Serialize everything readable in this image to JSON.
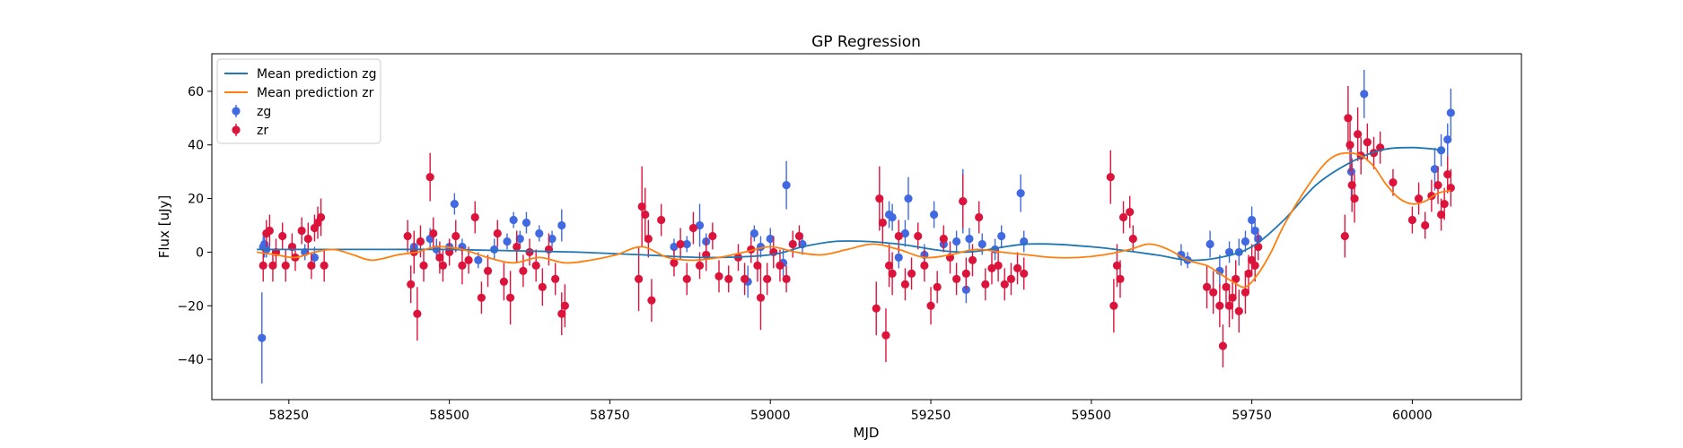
{
  "chart_data": {
    "type": "scatter",
    "title": "GP Regression",
    "xlabel": "MJD",
    "ylabel": "Flux [uJy]",
    "xlim": [
      58130,
      60170
    ],
    "ylim": [
      -55,
      74
    ],
    "xticks": [
      58250,
      58500,
      58750,
      59000,
      59250,
      59500,
      59750,
      60000
    ],
    "yticks": [
      -40,
      -20,
      0,
      20,
      40,
      60
    ],
    "grid": false,
    "legend": {
      "placement": "top-left",
      "entries": [
        {
          "label": "Mean prediction zg",
          "kind": "line",
          "color": "#1f77b4"
        },
        {
          "label": "Mean prediction zr",
          "kind": "line",
          "color": "#ff7f0e"
        },
        {
          "label": "zg",
          "kind": "errorbar",
          "color": "#4169e1"
        },
        {
          "label": "zr",
          "kind": "errorbar",
          "color": "#dc143c"
        }
      ]
    },
    "series": [
      {
        "name": "Mean prediction zg",
        "kind": "line",
        "color": "#1f77b4",
        "x": [
          58200,
          58300,
          58400,
          58500,
          58600,
          58700,
          58800,
          58900,
          59000,
          59050,
          59100,
          59150,
          59200,
          59300,
          59400,
          59500,
          59600,
          59650,
          59700,
          59750,
          59800,
          59850,
          59900,
          59950,
          60000,
          60050
        ],
        "y": [
          1,
          1,
          1,
          1,
          0.5,
          0,
          -1,
          -2,
          -1,
          2,
          4,
          4,
          3,
          0,
          3,
          2,
          -1,
          -3,
          -2,
          2,
          12,
          25,
          33,
          38,
          39,
          38
        ]
      },
      {
        "name": "Mean prediction zr",
        "kind": "line",
        "color": "#ff7f0e",
        "x": [
          58200,
          58230,
          58260,
          58290,
          58320,
          58350,
          58380,
          58420,
          58450,
          58480,
          58520,
          58560,
          58600,
          58640,
          58680,
          58720,
          58760,
          58800,
          58840,
          58880,
          58920,
          58960,
          59000,
          59040,
          59080,
          59120,
          59160,
          59200,
          59240,
          59280,
          59320,
          59360,
          59400,
          59440,
          59480,
          59520,
          59560,
          59590,
          59620,
          59650,
          59680,
          59700,
          59720,
          59740,
          59760,
          59780,
          59800,
          59830,
          59860,
          59880,
          59900,
          59920,
          59940,
          59960,
          59980,
          60000,
          60020,
          60040,
          60060
        ],
        "y": [
          0,
          -1,
          -2,
          0,
          1,
          -1,
          -3,
          -1,
          0,
          2,
          1,
          -2,
          -4,
          -2,
          -4,
          -3,
          -1,
          2,
          -2,
          -3,
          -2,
          0,
          2,
          0,
          -1,
          1,
          3,
          1,
          -2,
          -1,
          1,
          0,
          -1,
          -2,
          -2,
          -1,
          1,
          3,
          1,
          -3,
          -5,
          -8,
          -11,
          -13,
          -8,
          0,
          10,
          22,
          32,
          36,
          37,
          36,
          32,
          25,
          20,
          18,
          19,
          22,
          23
        ]
      },
      {
        "name": "zg",
        "kind": "errorbar",
        "color": "#4169e1",
        "points": [
          [
            58208,
            -32,
            17
          ],
          [
            58210,
            2,
            4
          ],
          [
            58212,
            3,
            5
          ],
          [
            58215,
            1,
            3
          ],
          [
            58275,
            0,
            3
          ],
          [
            58290,
            -2,
            4
          ],
          [
            58445,
            2,
            3
          ],
          [
            58470,
            5,
            4
          ],
          [
            58480,
            1,
            4
          ],
          [
            58500,
            2,
            3
          ],
          [
            58508,
            18,
            4
          ],
          [
            58520,
            2,
            3
          ],
          [
            58545,
            -3,
            3
          ],
          [
            58570,
            1,
            4
          ],
          [
            58590,
            4,
            3
          ],
          [
            58600,
            12,
            3
          ],
          [
            58610,
            5,
            3
          ],
          [
            58620,
            11,
            4
          ],
          [
            58640,
            7,
            3
          ],
          [
            58660,
            5,
            3
          ],
          [
            58675,
            10,
            6
          ],
          [
            58850,
            2,
            3
          ],
          [
            58870,
            3,
            3
          ],
          [
            58890,
            10,
            8
          ],
          [
            58900,
            4,
            3
          ],
          [
            58965,
            -11,
            6
          ],
          [
            58975,
            7,
            3
          ],
          [
            58985,
            2,
            4
          ],
          [
            59000,
            5,
            4
          ],
          [
            59020,
            -4,
            5
          ],
          [
            59025,
            25,
            9
          ],
          [
            59050,
            3,
            4
          ],
          [
            59185,
            14,
            5
          ],
          [
            59190,
            13,
            5
          ],
          [
            59200,
            -2,
            4
          ],
          [
            59210,
            7,
            5
          ],
          [
            59215,
            20,
            8
          ],
          [
            59240,
            -1,
            4
          ],
          [
            59255,
            14,
            5
          ],
          [
            59270,
            3,
            3
          ],
          [
            59290,
            4,
            4
          ],
          [
            59300,
            19,
            12
          ],
          [
            59305,
            -14,
            5
          ],
          [
            59310,
            5,
            4
          ],
          [
            59330,
            3,
            4
          ],
          [
            59350,
            1,
            4
          ],
          [
            59360,
            6,
            4
          ],
          [
            59390,
            22,
            7
          ],
          [
            59395,
            4,
            4
          ],
          [
            59640,
            -1,
            4
          ],
          [
            59650,
            -3,
            3
          ],
          [
            59685,
            3,
            5
          ],
          [
            59700,
            -7,
            6
          ],
          [
            59715,
            0,
            4
          ],
          [
            59730,
            0,
            5
          ],
          [
            59740,
            4,
            4
          ],
          [
            59750,
            12,
            5
          ],
          [
            59755,
            8,
            4
          ],
          [
            59760,
            5,
            4
          ],
          [
            59905,
            30,
            10
          ],
          [
            59925,
            59,
            9
          ],
          [
            60035,
            31,
            8
          ],
          [
            60045,
            38,
            6
          ],
          [
            60055,
            42,
            6
          ],
          [
            60060,
            52,
            9
          ]
        ]
      },
      {
        "name": "zr",
        "kind": "errorbar",
        "color": "#dc143c",
        "points": [
          [
            58210,
            -5,
            6
          ],
          [
            58215,
            7,
            5
          ],
          [
            58220,
            8,
            6
          ],
          [
            58225,
            -5,
            6
          ],
          [
            58230,
            0,
            5
          ],
          [
            58240,
            6,
            5
          ],
          [
            58245,
            -5,
            6
          ],
          [
            58255,
            2,
            5
          ],
          [
            58260,
            -2,
            5
          ],
          [
            58270,
            8,
            5
          ],
          [
            58280,
            5,
            6
          ],
          [
            58285,
            -5,
            5
          ],
          [
            58290,
            9,
            5
          ],
          [
            58295,
            11,
            6
          ],
          [
            58300,
            13,
            7
          ],
          [
            58305,
            -5,
            6
          ],
          [
            58435,
            6,
            6
          ],
          [
            58440,
            -12,
            7
          ],
          [
            58445,
            0,
            8
          ],
          [
            58450,
            -23,
            10
          ],
          [
            58455,
            4,
            6
          ],
          [
            58460,
            -5,
            6
          ],
          [
            58470,
            28,
            9
          ],
          [
            58475,
            7,
            6
          ],
          [
            58485,
            -2,
            6
          ],
          [
            58490,
            -5,
            6
          ],
          [
            58500,
            0,
            5
          ],
          [
            58510,
            6,
            6
          ],
          [
            58520,
            -5,
            7
          ],
          [
            58530,
            -3,
            5
          ],
          [
            58540,
            13,
            6
          ],
          [
            58550,
            -17,
            6
          ],
          [
            58560,
            -7,
            6
          ],
          [
            58575,
            7,
            5
          ],
          [
            58585,
            -11,
            7
          ],
          [
            58595,
            -17,
            10
          ],
          [
            58605,
            2,
            6
          ],
          [
            58615,
            -7,
            6
          ],
          [
            58625,
            0,
            5
          ],
          [
            58635,
            -5,
            6
          ],
          [
            58645,
            -13,
            7
          ],
          [
            58655,
            1,
            6
          ],
          [
            58665,
            -10,
            6
          ],
          [
            58675,
            -23,
            8
          ],
          [
            58680,
            -20,
            8
          ],
          [
            58795,
            -10,
            12
          ],
          [
            58800,
            17,
            15
          ],
          [
            58805,
            14,
            10
          ],
          [
            58810,
            5,
            7
          ],
          [
            58815,
            -18,
            8
          ],
          [
            58830,
            12,
            6
          ],
          [
            58850,
            -4,
            5
          ],
          [
            58860,
            3,
            6
          ],
          [
            58870,
            -10,
            6
          ],
          [
            58880,
            9,
            6
          ],
          [
            58890,
            -5,
            5
          ],
          [
            58900,
            -1,
            6
          ],
          [
            58910,
            6,
            5
          ],
          [
            58920,
            -9,
            6
          ],
          [
            58935,
            -10,
            5
          ],
          [
            58950,
            -2,
            5
          ],
          [
            58960,
            -10,
            6
          ],
          [
            58970,
            1,
            5
          ],
          [
            58980,
            -5,
            6
          ],
          [
            58985,
            -17,
            12
          ],
          [
            58995,
            -10,
            6
          ],
          [
            59005,
            0,
            6
          ],
          [
            59015,
            -5,
            6
          ],
          [
            59025,
            -10,
            5
          ],
          [
            59035,
            3,
            5
          ],
          [
            59045,
            6,
            4
          ],
          [
            59165,
            -21,
            10
          ],
          [
            59170,
            20,
            12
          ],
          [
            59175,
            11,
            8
          ],
          [
            59180,
            -31,
            10
          ],
          [
            59185,
            -5,
            8
          ],
          [
            59190,
            -8,
            8
          ],
          [
            59200,
            6,
            6
          ],
          [
            59210,
            -12,
            6
          ],
          [
            59220,
            -8,
            6
          ],
          [
            59230,
            6,
            5
          ],
          [
            59240,
            -5,
            6
          ],
          [
            59250,
            -20,
            7
          ],
          [
            59260,
            -13,
            6
          ],
          [
            59270,
            5,
            5
          ],
          [
            59280,
            -2,
            6
          ],
          [
            59290,
            -10,
            6
          ],
          [
            59300,
            19,
            10
          ],
          [
            59305,
            -8,
            6
          ],
          [
            59315,
            -3,
            6
          ],
          [
            59325,
            13,
            6
          ],
          [
            59335,
            -12,
            6
          ],
          [
            59345,
            -6,
            6
          ],
          [
            59355,
            -5,
            6
          ],
          [
            59365,
            -12,
            6
          ],
          [
            59375,
            -10,
            6
          ],
          [
            59385,
            -6,
            6
          ],
          [
            59395,
            -8,
            6
          ],
          [
            59530,
            28,
            10
          ],
          [
            59535,
            -20,
            10
          ],
          [
            59540,
            -5,
            8
          ],
          [
            59545,
            -10,
            7
          ],
          [
            59550,
            13,
            6
          ],
          [
            59560,
            15,
            6
          ],
          [
            59565,
            5,
            5
          ],
          [
            59680,
            -13,
            8
          ],
          [
            59690,
            -15,
            8
          ],
          [
            59700,
            -20,
            8
          ],
          [
            59705,
            -35,
            8
          ],
          [
            59710,
            -13,
            8
          ],
          [
            59715,
            -20,
            8
          ],
          [
            59720,
            -17,
            8
          ],
          [
            59725,
            -10,
            7
          ],
          [
            59730,
            -22,
            8
          ],
          [
            59740,
            -15,
            8
          ],
          [
            59745,
            -8,
            7
          ],
          [
            59750,
            -3,
            6
          ],
          [
            59755,
            -5,
            6
          ],
          [
            59760,
            2,
            5
          ],
          [
            59895,
            6,
            8
          ],
          [
            59900,
            50,
            12
          ],
          [
            59903,
            40,
            10
          ],
          [
            59906,
            25,
            10
          ],
          [
            59910,
            20,
            9
          ],
          [
            59915,
            44,
            10
          ],
          [
            59920,
            36,
            7
          ],
          [
            59930,
            41,
            7
          ],
          [
            59940,
            37,
            6
          ],
          [
            59950,
            39,
            6
          ],
          [
            59970,
            26,
            5
          ],
          [
            60000,
            12,
            5
          ],
          [
            60010,
            20,
            6
          ],
          [
            60020,
            10,
            5
          ],
          [
            60030,
            21,
            6
          ],
          [
            60040,
            25,
            7
          ],
          [
            60045,
            14,
            6
          ],
          [
            60050,
            18,
            6
          ],
          [
            60055,
            29,
            7
          ],
          [
            60060,
            24,
            7
          ]
        ]
      }
    ]
  }
}
